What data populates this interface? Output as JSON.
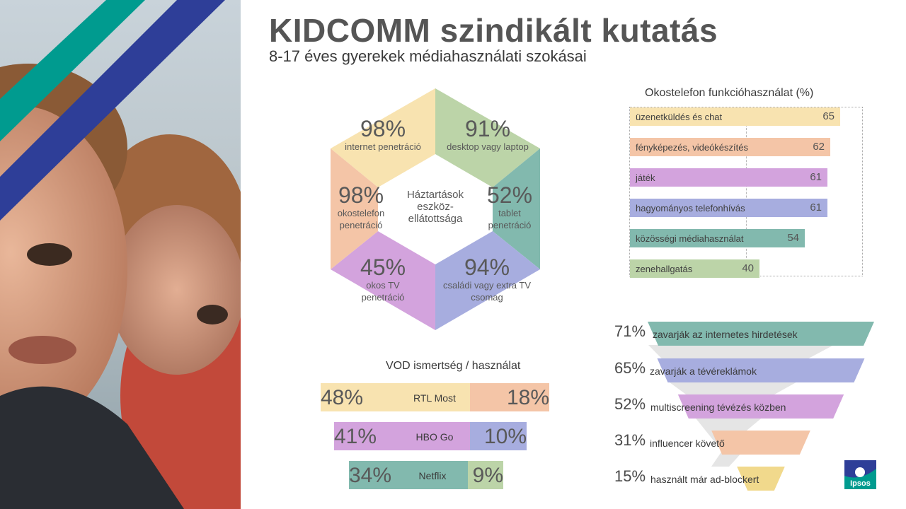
{
  "title": "KIDCOMM szindikált kutatás",
  "subtitle": "8-17 éves gyerekek médiahasználati szokásai",
  "colors": {
    "yellow": "#f8e3b0",
    "green": "#bcd4a8",
    "teal": "#82b9ae",
    "blue": "#a7addf",
    "purple": "#d3a3dd",
    "orange": "#f4c5a7",
    "stripe_teal": "#009b8f",
    "stripe_navy": "#2e3e98"
  },
  "hexagon": {
    "center": "Háztartások eszköz-ellátottsága",
    "segments": [
      {
        "pct": "98%",
        "label": "internet penetráció"
      },
      {
        "pct": "91%",
        "label": "desktop vagy laptop"
      },
      {
        "pct": "52%",
        "label": "tablet penetráció"
      },
      {
        "pct": "94%",
        "label": "családi vagy extra TV csomag"
      },
      {
        "pct": "45%",
        "label": "okos TV penetráció"
      },
      {
        "pct": "98%",
        "label": "okostelefon penetráció"
      }
    ]
  },
  "chart_data": [
    {
      "type": "bar",
      "title": "Okostelefon funkcióhasználat (%)",
      "categories": [
        "üzenetküldés és chat",
        "fényképezés, videókészítés",
        "játék",
        "hagyományos telefonhívás",
        "közösségi médiahasználat",
        "zenehallgatás"
      ],
      "values": [
        65,
        62,
        61,
        61,
        54,
        40
      ],
      "xlim": [
        0,
        65
      ]
    },
    {
      "type": "bar",
      "title": "",
      "categories": [
        "zavarják az internetes hirdetések",
        "zavarják a tévéreklámok",
        "multiscreening tévézés közben",
        "influencer követő",
        "használt már ad-blockert"
      ],
      "values": [
        71,
        65,
        52,
        31,
        15
      ]
    },
    {
      "type": "bar",
      "title": "VOD ismertség / használat",
      "categories": [
        "RTL Most",
        "HBO Go",
        "Netflix"
      ],
      "series": [
        {
          "values": [
            48,
            41,
            34
          ]
        },
        {
          "values": [
            18,
            10,
            9
          ]
        }
      ]
    }
  ]
}
